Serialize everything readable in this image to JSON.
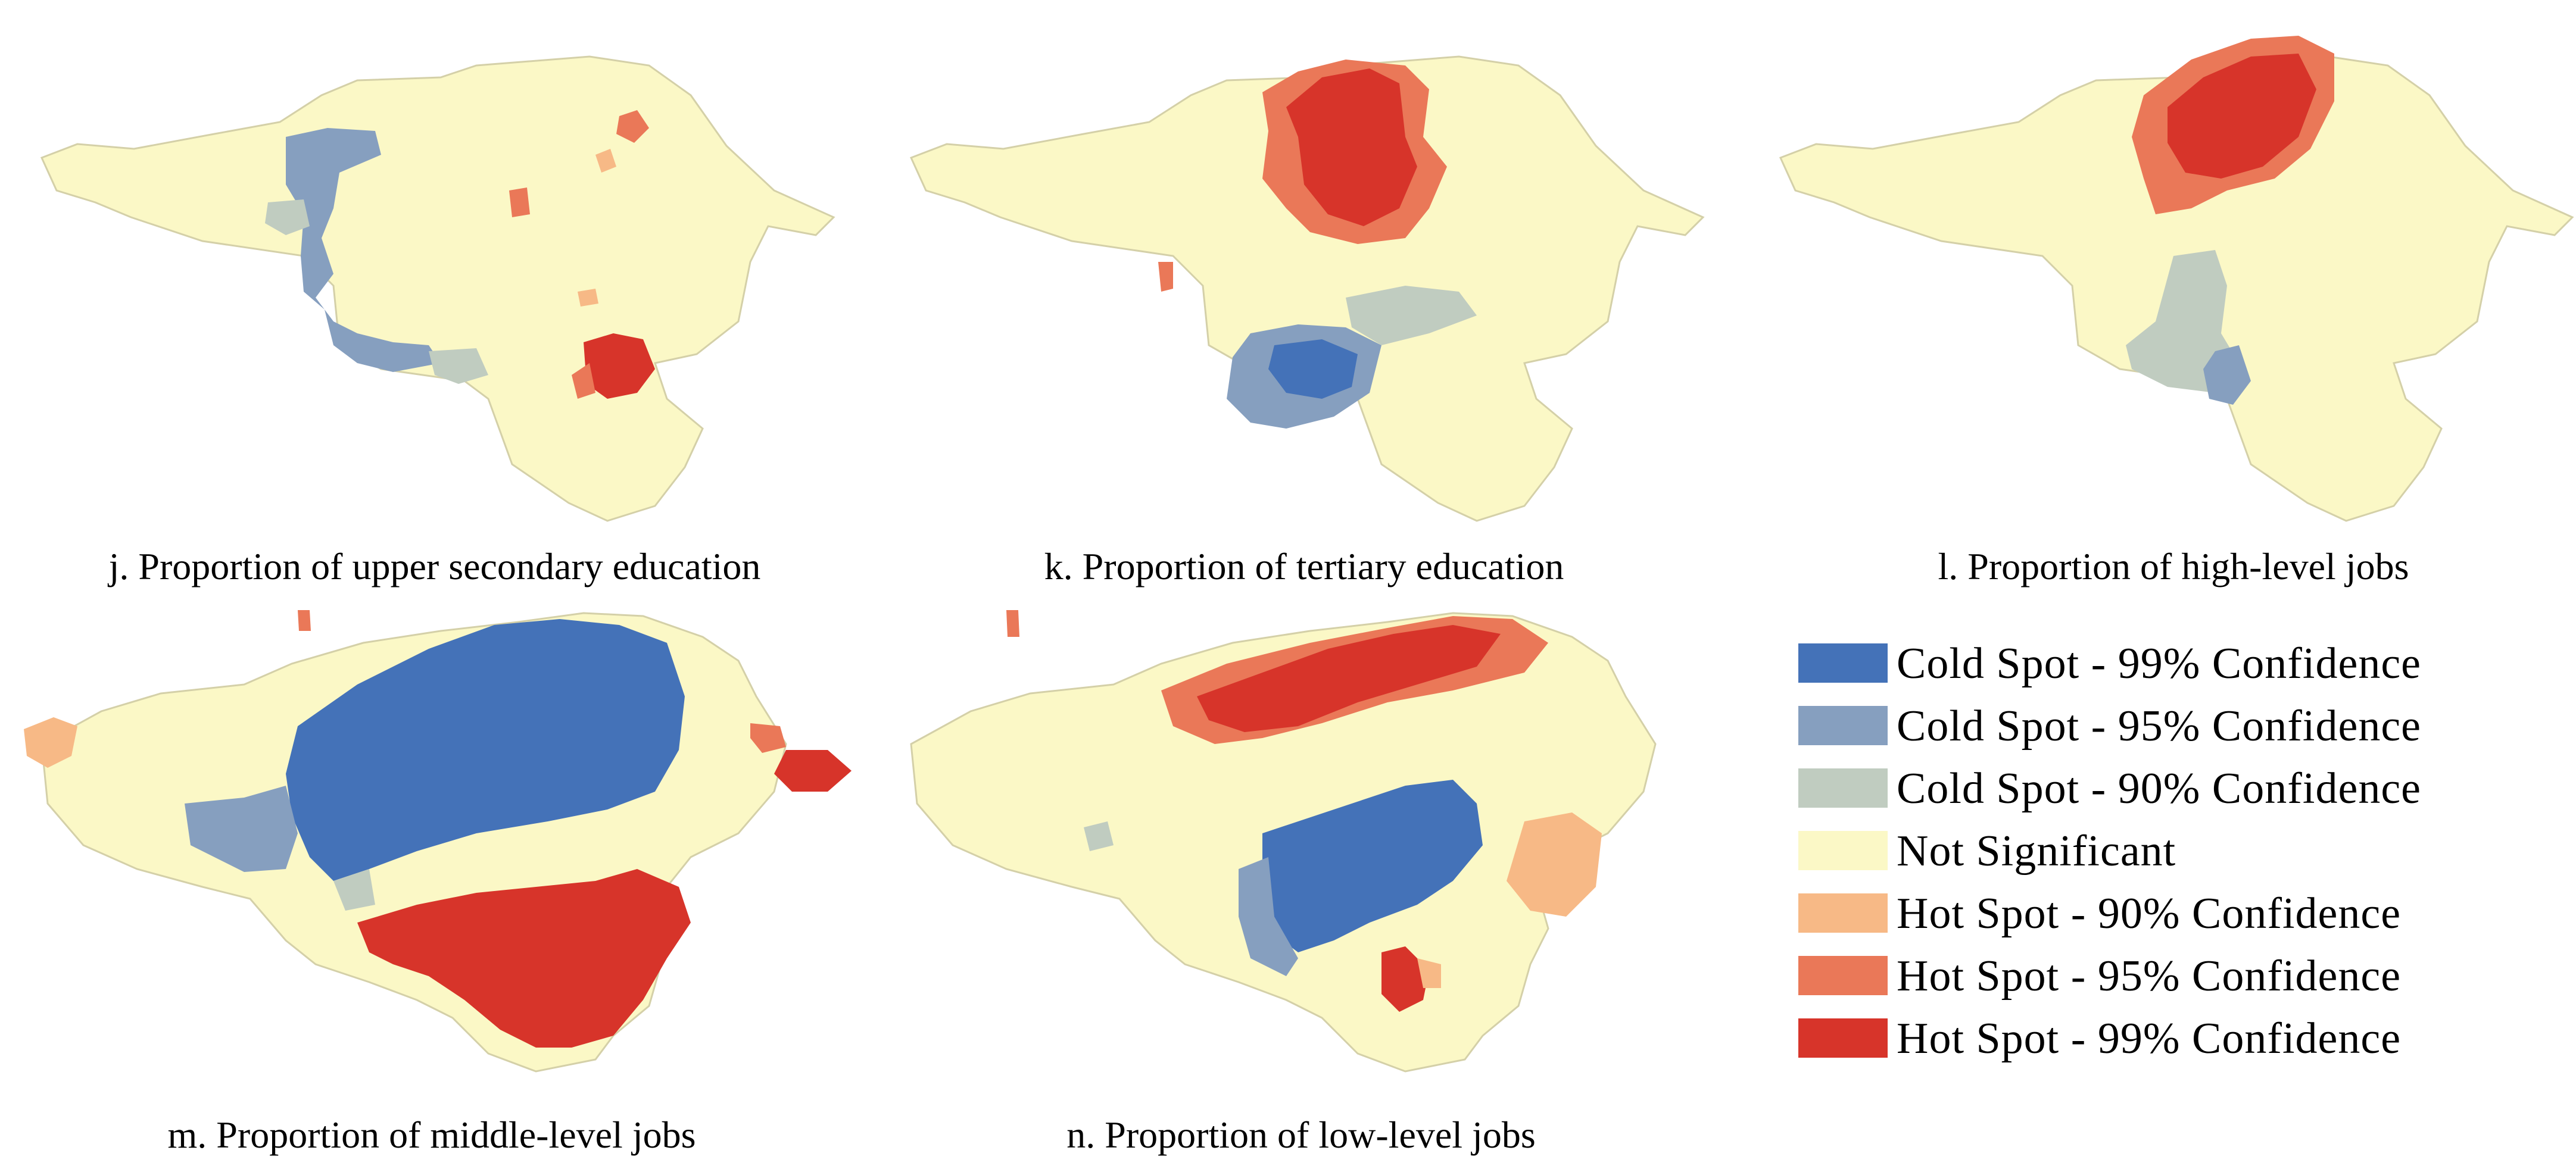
{
  "panels": [
    {
      "id": "j",
      "caption": "j. Proportion of upper secondary education"
    },
    {
      "id": "k",
      "caption": "k. Proportion of tertiary education"
    },
    {
      "id": "l",
      "caption": "l. Proportion of high-level jobs"
    },
    {
      "id": "m",
      "caption": "m. Proportion of middle-level jobs"
    },
    {
      "id": "n",
      "caption": "n. Proportion of low-level jobs"
    }
  ],
  "legend": {
    "items": [
      {
        "label": "Cold Spot - 99% Confidence",
        "color": "#4472b8"
      },
      {
        "label": "Cold Spot - 95% Confidence",
        "color": "#869fbf"
      },
      {
        "label": "Cold Spot - 90% Confidence",
        "color": "#c0ccc0"
      },
      {
        "label": "Not Significant",
        "color": "#fbf8c6"
      },
      {
        "label": "Hot Spot - 90% Confidence",
        "color": "#f7b986"
      },
      {
        "label": "Hot Spot - 95% Confidence",
        "color": "#ea7858"
      },
      {
        "label": "Hot Spot - 99% Confidence",
        "color": "#d7342a"
      }
    ]
  }
}
